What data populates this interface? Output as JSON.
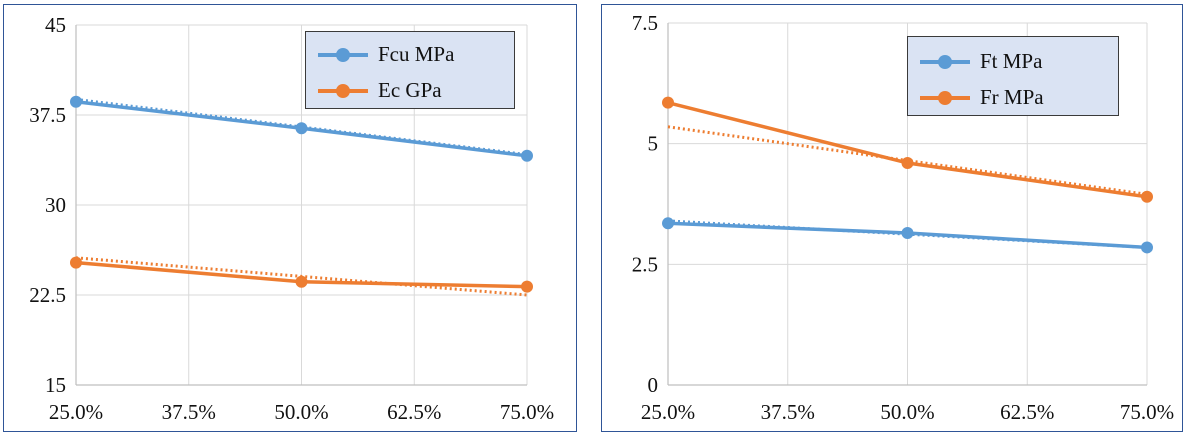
{
  "chart_data": [
    {
      "type": "line",
      "x_tick_labels": [
        "25.0%",
        "37.5%",
        "50.0%",
        "62.5%",
        "75.0%"
      ],
      "y_tick_labels": [
        "15",
        "22.5",
        "30",
        "37.5",
        "45"
      ],
      "xlim": [
        25,
        75
      ],
      "ylim": [
        15,
        45
      ],
      "grid": true,
      "legend_position": "top-right",
      "series": [
        {
          "name": "Fcu MPa",
          "color": "#5b9bd5",
          "x": [
            25,
            50,
            75
          ],
          "values": [
            38.6,
            36.4,
            34.1
          ]
        },
        {
          "name": "Ec GPa",
          "color": "#ed7d31",
          "x": [
            25,
            50,
            75
          ],
          "values": [
            25.2,
            23.6,
            23.2
          ]
        }
      ],
      "trendlines": [
        {
          "series": "Fcu MPa",
          "style": "dotted",
          "color": "#5b9bd5",
          "x": [
            25,
            75
          ],
          "values": [
            38.8,
            34.2
          ]
        },
        {
          "series": "Ec GPa",
          "style": "dotted",
          "color": "#ed7d31",
          "x": [
            25,
            75
          ],
          "values": [
            25.6,
            22.5
          ]
        }
      ]
    },
    {
      "type": "line",
      "x_tick_labels": [
        "25.0%",
        "37.5%",
        "50.0%",
        "62.5%",
        "75.0%"
      ],
      "y_tick_labels": [
        "0",
        "2.5",
        "5",
        "7.5"
      ],
      "xlim": [
        25,
        75
      ],
      "ylim": [
        0,
        7.5
      ],
      "grid": true,
      "legend_position": "top-right",
      "series": [
        {
          "name": "Ft MPa",
          "color": "#5b9bd5",
          "x": [
            25,
            50,
            75
          ],
          "values": [
            3.35,
            3.15,
            2.85
          ]
        },
        {
          "name": "Fr MPa",
          "color": "#ed7d31",
          "x": [
            25,
            50,
            75
          ],
          "values": [
            5.85,
            4.6,
            3.9
          ]
        }
      ],
      "trendlines": [
        {
          "series": "Ft MPa",
          "style": "dotted",
          "color": "#5b9bd5",
          "x": [
            25,
            75
          ],
          "values": [
            3.4,
            2.85
          ]
        },
        {
          "series": "Fr MPa",
          "style": "dotted",
          "color": "#ed7d31",
          "x": [
            25,
            75
          ],
          "values": [
            5.35,
            3.95
          ]
        }
      ]
    }
  ]
}
